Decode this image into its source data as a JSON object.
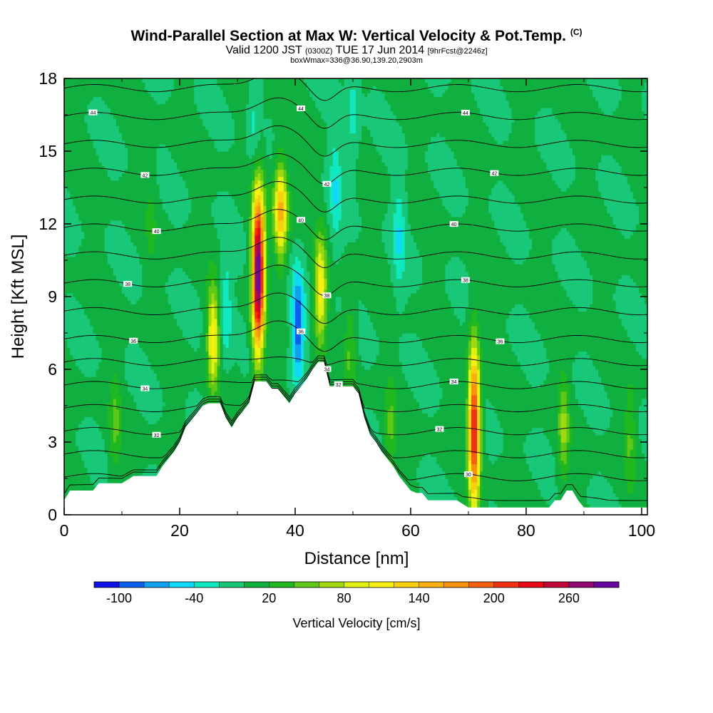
{
  "header": {
    "title_main": "Wind-Parallel Section at Max W: Vertical Velocity & Pot.Temp.",
    "title_mark": "(C)",
    "valid_a": "Valid 1200 JST",
    "valid_b": "(0300Z)",
    "valid_c": "TUE 17 Jun 2014",
    "valid_d": "[9hrFcst@2246z]",
    "box_line": "boxWmax=336@36.90,139.20,2903m"
  },
  "colors": {
    "background_field": "#14dfb0",
    "terrain": "#ffffff",
    "contour": "#000000",
    "colorbar": [
      "#1010e8",
      "#1060f0",
      "#10a0f0",
      "#10d8f8",
      "#10e8c0",
      "#18c878",
      "#10b040",
      "#20b820",
      "#60c818",
      "#a0d810",
      "#e0f010",
      "#f8f010",
      "#f8d010",
      "#f8b010",
      "#f89010",
      "#f86010",
      "#f03010",
      "#e80818",
      "#c00838",
      "#900870",
      "#6808a0"
    ]
  },
  "chart_data": {
    "type": "heatmap",
    "xlabel": "Distance [nm]",
    "ylabel": "Height [Kft MSL]",
    "xlim": [
      0,
      101
    ],
    "ylim": [
      0,
      18
    ],
    "xticks": [
      0,
      20,
      40,
      60,
      80,
      100
    ],
    "yticks": [
      0,
      3,
      6,
      9,
      12,
      15,
      18
    ],
    "colorbar": {
      "label": "Vertical Velocity [cm/s]",
      "tick_labels": [
        "-100",
        "-40",
        "20",
        "80",
        "140",
        "200",
        "260"
      ],
      "min": -120,
      "max": 300,
      "step": 20
    },
    "terrain": {
      "x": [
        0,
        1,
        2,
        5,
        6,
        8,
        9,
        10,
        12,
        16,
        17,
        18,
        19,
        20,
        21,
        22,
        24,
        25,
        27,
        28,
        29,
        30,
        31,
        32,
        33,
        34,
        35,
        36,
        37,
        38,
        39,
        40,
        41,
        42,
        43,
        44,
        45,
        46,
        47,
        48,
        50,
        51,
        52,
        53,
        54,
        55,
        56,
        57,
        58,
        59,
        60,
        61,
        62,
        63,
        64,
        68,
        70,
        71,
        72,
        74,
        80,
        84,
        85,
        86,
        87,
        88,
        89,
        90,
        95,
        100,
        101
      ],
      "height": [
        0.6,
        1.0,
        1.0,
        1.0,
        1.3,
        1.3,
        1.3,
        1.3,
        1.6,
        1.6,
        2.0,
        2.3,
        2.6,
        3.0,
        3.6,
        3.9,
        4.5,
        4.6,
        4.6,
        4.0,
        3.6,
        4.0,
        4.3,
        4.6,
        5.5,
        5.5,
        5.5,
        5.2,
        5.2,
        4.9,
        4.6,
        5.0,
        5.3,
        5.6,
        6.0,
        6.3,
        6.3,
        5.3,
        5.3,
        5.3,
        5.3,
        5.0,
        4.0,
        3.3,
        3.0,
        2.6,
        2.3,
        2.0,
        1.6,
        1.3,
        1.0,
        0.9,
        0.9,
        0.6,
        0.6,
        0.6,
        0.3,
        0.3,
        0.3,
        0.3,
        0.3,
        0.3,
        0.6,
        0.6,
        1.0,
        1.0,
        0.6,
        0.3,
        0.3,
        0.3,
        0.3
      ]
    },
    "updrafts": [
      {
        "x": 33.6,
        "z": 10.0,
        "peak": 300
      },
      {
        "x": 37.5,
        "z": 12.5,
        "peak": 110
      },
      {
        "x": 25.8,
        "z": 7.3,
        "peak": 110
      },
      {
        "x": 44.4,
        "z": 9.3,
        "peak": 110
      },
      {
        "x": 71.0,
        "z": 3.6,
        "peak": 230
      },
      {
        "x": 49.5,
        "z": 6.8,
        "peak": 40
      },
      {
        "x": 86.5,
        "z": 3.6,
        "peak": 60
      },
      {
        "x": 8.8,
        "z": 3.8,
        "peak": 40
      },
      {
        "x": 56.5,
        "z": 3.5,
        "peak": 40
      },
      {
        "x": 98.0,
        "z": 3.3,
        "peak": 40
      },
      {
        "x": 15.0,
        "z": 12.0,
        "peak": 20
      }
    ],
    "downdrafts": [
      {
        "x": 40.5,
        "z": 7.8,
        "peak": -100
      },
      {
        "x": 28.0,
        "z": 8.5,
        "peak": -40
      },
      {
        "x": 47.0,
        "z": 13.5,
        "peak": -40
      },
      {
        "x": 58.0,
        "z": 11.5,
        "peak": -40
      },
      {
        "x": 33.0,
        "z": 16.0,
        "peak": -30
      },
      {
        "x": 50.0,
        "z": 16.5,
        "peak": -30
      }
    ],
    "theta_contours": [
      {
        "level": 30,
        "label": "30",
        "label_x": 70
      },
      {
        "level": 32,
        "label": "32",
        "label_x": 16
      },
      {
        "level": 34,
        "label": "34",
        "label_x": 14
      },
      {
        "level": 36,
        "label": "36",
        "label_x": 12
      },
      {
        "level": 38,
        "label": "38",
        "label_x": 11
      },
      {
        "level": 40,
        "label": "40",
        "label_x": 16
      },
      {
        "level": 42,
        "label": "42",
        "label_x": 14
      },
      {
        "level": 44,
        "label": "44",
        "label_x": 5
      },
      {
        "level": 44,
        "label": "44",
        "label_x": 41
      },
      {
        "level": 44,
        "label": "44",
        "label_x": 69.5
      },
      {
        "level": 42,
        "label": "42",
        "label_x": 45.5
      },
      {
        "level": 42,
        "label": "42",
        "label_x": 74.5
      },
      {
        "level": 40,
        "label": "40",
        "label_x": 41
      },
      {
        "level": 40,
        "label": "40",
        "label_x": 67.5
      },
      {
        "level": 38,
        "label": "38",
        "label_x": 45.5
      },
      {
        "level": 38,
        "label": "38",
        "label_x": 69.5
      },
      {
        "level": 36,
        "label": "36",
        "label_x": 41
      },
      {
        "level": 36,
        "label": "36",
        "label_x": 75.5
      },
      {
        "level": 34,
        "label": "34",
        "label_x": 45.5
      },
      {
        "level": 34,
        "label": "34",
        "label_x": 67.5
      },
      {
        "level": 32,
        "label": "32",
        "label_x": 47.5
      },
      {
        "level": 32,
        "label": "32",
        "label_x": 65
      }
    ]
  }
}
